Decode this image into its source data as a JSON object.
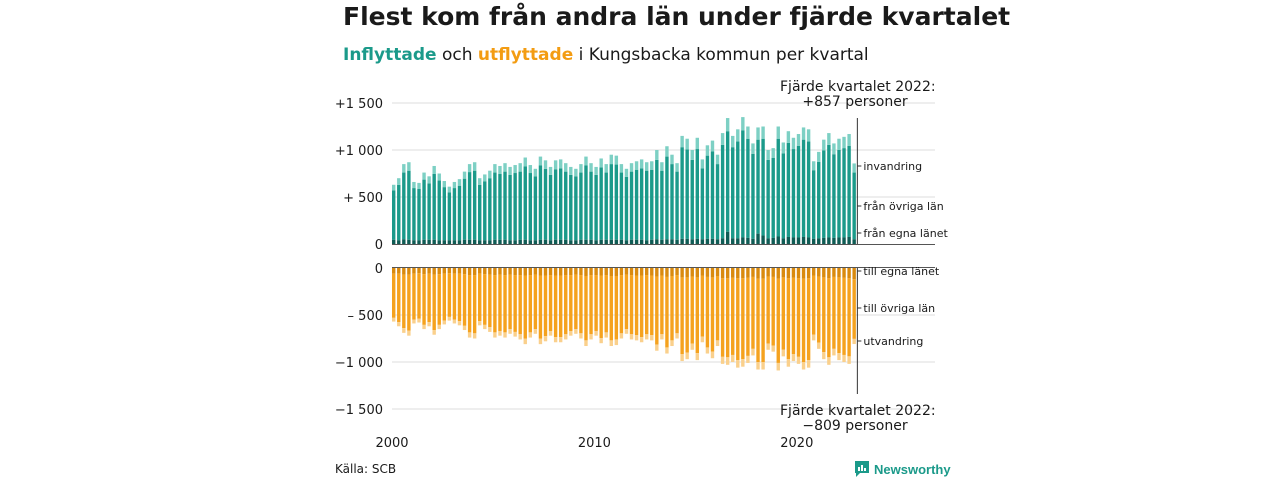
{
  "title": "Flest kom från andra län under fjärde kvartalet",
  "subtitle": {
    "part1": "Inflyttade",
    "part2": " och ",
    "part3": "utflyttade",
    "part4": " i Kungsbacka kommun per kvartal"
  },
  "annotation_top": {
    "line1": "Fjärde kvartalet 2022:",
    "line2": "+857 personer"
  },
  "annotation_bottom": {
    "line1": "Fjärde kvartalet 2022:",
    "line2": "−809 personer"
  },
  "source": "Källa: SCB",
  "brand": "Newsworthy",
  "colors": {
    "in_own": "#0f5c55",
    "in_other": "#1b9a8a",
    "in_imm": "#7dd0c4",
    "out_own": "#d98a0e",
    "out_other": "#f5a21e",
    "out_emig": "#fad08c"
  },
  "chart_data": {
    "type": "bar",
    "stacked": true,
    "x_axis": {
      "ticks": [
        "2000",
        "2010",
        "2020"
      ]
    },
    "y_axis": {
      "ticks": [
        "+1 500",
        "+1 000",
        "+  500",
        "0",
        "0",
        "–  500",
        "−1 000",
        "−1 500"
      ]
    },
    "quarters_from": "2000-Q1",
    "quarters_to": "2022-Q4",
    "series_labels": {
      "invandring": "invandring",
      "fran_ovriga_lan": "från övriga län",
      "fran_egna_lanet": "från egna länet",
      "till_egna_lanet": "till egna länet",
      "till_ovriga_lan": "till övriga län",
      "utvandring": "utvandring"
    },
    "inflow_total": [
      630,
      700,
      850,
      870,
      660,
      650,
      760,
      720,
      830,
      750,
      670,
      610,
      660,
      690,
      770,
      850,
      870,
      700,
      740,
      780,
      850,
      830,
      860,
      820,
      840,
      860,
      920,
      840,
      800,
      930,
      890,
      820,
      890,
      900,
      860,
      820,
      800,
      850,
      930,
      860,
      820,
      910,
      850,
      950,
      940,
      850,
      800,
      860,
      880,
      900,
      870,
      880,
      1000,
      870,
      1040,
      950,
      860,
      1150,
      1120,
      1000,
      1130,
      900,
      1050,
      1100,
      950,
      1180,
      1340,
      1150,
      1220,
      1350,
      1250,
      1070,
      1240,
      1250,
      1000,
      1020,
      1250,
      1080,
      1200,
      1130,
      1170,
      1240,
      1220,
      880,
      980,
      1110,
      1180,
      1070,
      1120,
      1140,
      1170,
      857
    ],
    "inflow_own_county": [
      45,
      40,
      50,
      45,
      40,
      40,
      45,
      45,
      45,
      40,
      40,
      40,
      40,
      40,
      45,
      45,
      45,
      40,
      40,
      40,
      45,
      45,
      45,
      40,
      40,
      45,
      45,
      40,
      40,
      45,
      45,
      40,
      45,
      45,
      45,
      40,
      40,
      45,
      45,
      45,
      40,
      45,
      45,
      45,
      45,
      45,
      40,
      45,
      45,
      45,
      40,
      45,
      50,
      45,
      50,
      50,
      45,
      55,
      55,
      50,
      55,
      50,
      55,
      55,
      50,
      60,
      130,
      60,
      60,
      70,
      65,
      55,
      110,
      90,
      60,
      65,
      80,
      60,
      75,
      70,
      70,
      75,
      70,
      55,
      60,
      65,
      70,
      65,
      70,
      70,
      75,
      50
    ],
    "inflow_immigration": [
      60,
      70,
      90,
      90,
      65,
      65,
      75,
      75,
      85,
      75,
      65,
      60,
      65,
      70,
      75,
      85,
      90,
      70,
      75,
      80,
      90,
      85,
      90,
      85,
      85,
      90,
      95,
      85,
      80,
      95,
      90,
      85,
      95,
      95,
      90,
      85,
      80,
      90,
      95,
      90,
      85,
      95,
      90,
      100,
      95,
      90,
      85,
      90,
      90,
      95,
      90,
      90,
      105,
      90,
      110,
      100,
      90,
      120,
      115,
      105,
      120,
      95,
      110,
      115,
      100,
      125,
      140,
      120,
      130,
      140,
      130,
      110,
      130,
      130,
      105,
      105,
      130,
      115,
      125,
      120,
      125,
      130,
      130,
      95,
      105,
      115,
      125,
      115,
      120,
      120,
      125,
      97
    ],
    "outflow_total": [
      -570,
      -620,
      -690,
      -720,
      -590,
      -580,
      -650,
      -620,
      -710,
      -650,
      -600,
      -560,
      -590,
      -610,
      -660,
      -740,
      -750,
      -610,
      -650,
      -680,
      -740,
      -720,
      -740,
      -700,
      -730,
      -760,
      -810,
      -740,
      -700,
      -810,
      -780,
      -720,
      -790,
      -790,
      -760,
      -720,
      -700,
      -750,
      -830,
      -760,
      -720,
      -800,
      -740,
      -830,
      -820,
      -750,
      -700,
      -760,
      -770,
      -790,
      -760,
      -770,
      -880,
      -760,
      -910,
      -830,
      -750,
      -990,
      -970,
      -870,
      -980,
      -790,
      -910,
      -960,
      -830,
      -1020,
      -1030,
      -1000,
      -1060,
      -1050,
      -1010,
      -930,
      -1080,
      -1080,
      -870,
      -890,
      -1090,
      -940,
      -1050,
      -990,
      -1020,
      -1080,
      -1060,
      -770,
      -860,
      -970,
      -1030,
      -930,
      -980,
      -1000,
      -1020,
      -809
    ],
    "outflow_own_county": [
      -60,
      -60,
      -70,
      -70,
      -60,
      -55,
      -65,
      -60,
      -70,
      -65,
      -60,
      -55,
      -60,
      -60,
      -65,
      -75,
      -75,
      -60,
      -65,
      -70,
      -75,
      -70,
      -75,
      -70,
      -75,
      -75,
      -80,
      -75,
      -70,
      -80,
      -80,
      -75,
      -80,
      -80,
      -75,
      -75,
      -70,
      -75,
      -85,
      -75,
      -75,
      -80,
      -75,
      -85,
      -85,
      -75,
      -70,
      -75,
      -80,
      -80,
      -75,
      -80,
      -90,
      -80,
      -95,
      -85,
      -75,
      -100,
      -100,
      -90,
      -100,
      -80,
      -95,
      -100,
      -85,
      -110,
      -110,
      -105,
      -110,
      -110,
      -105,
      -95,
      -115,
      -115,
      -90,
      -95,
      -115,
      -100,
      -110,
      -105,
      -110,
      -115,
      -110,
      -80,
      -90,
      -100,
      -110,
      -95,
      -100,
      -105,
      -110,
      -120
    ],
    "outflow_emigration": [
      -40,
      -45,
      -50,
      -55,
      -40,
      -40,
      -45,
      -45,
      -50,
      -45,
      -40,
      -40,
      -40,
      -45,
      -45,
      -55,
      -55,
      -45,
      -45,
      -50,
      -55,
      -50,
      -55,
      -50,
      -50,
      -55,
      -60,
      -55,
      -50,
      -60,
      -55,
      -50,
      -55,
      -55,
      -55,
      -50,
      -50,
      -55,
      -60,
      -55,
      -50,
      -55,
      -55,
      -60,
      -60,
      -55,
      -50,
      -55,
      -55,
      -55,
      -55,
      -55,
      -65,
      -55,
      -65,
      -60,
      -55,
      -75,
      -70,
      -65,
      -75,
      -60,
      -65,
      -70,
      -60,
      -75,
      -80,
      -75,
      -80,
      -80,
      -75,
      -70,
      -80,
      -80,
      -65,
      -65,
      -80,
      -70,
      -80,
      -75,
      -75,
      -80,
      -80,
      -60,
      -65,
      -75,
      -80,
      -70,
      -75,
      -75,
      -80,
      -55
    ]
  }
}
